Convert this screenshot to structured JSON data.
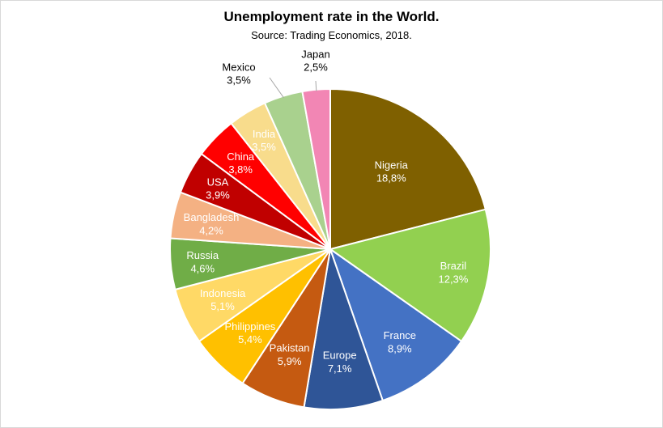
{
  "chart_data": {
    "type": "pie",
    "title": "Unemployment rate in the World.",
    "subtitle": "Source: Trading Economics, 2018.",
    "unit": "%",
    "slices": [
      {
        "label": "Nigeria",
        "value": 18.8,
        "value_text": "18,8%",
        "color": "#7f6000",
        "text_color": "#ffffff"
      },
      {
        "label": "Brazil",
        "value": 12.3,
        "value_text": "12,3%",
        "color": "#92d050",
        "text_color": "#ffffff"
      },
      {
        "label": "France",
        "value": 8.9,
        "value_text": "8,9%",
        "color": "#4472c4",
        "text_color": "#ffffff"
      },
      {
        "label": "Europe",
        "value": 7.1,
        "value_text": "7,1%",
        "color": "#2f5597",
        "text_color": "#ffffff"
      },
      {
        "label": "Pakistan",
        "value": 5.9,
        "value_text": "5,9%",
        "color": "#c55a11",
        "text_color": "#ffffff"
      },
      {
        "label": "Philippines",
        "value": 5.4,
        "value_text": "5,4%",
        "color": "#ffc000",
        "text_color": "#ffffff"
      },
      {
        "label": "Indonesia",
        "value": 5.1,
        "value_text": "5,1%",
        "color": "#ffd966",
        "text_color": "#ffffff"
      },
      {
        "label": "Russia",
        "value": 4.6,
        "value_text": "4,6%",
        "color": "#70ad47",
        "text_color": "#ffffff"
      },
      {
        "label": "Bangladesh",
        "value": 4.2,
        "value_text": "4,2%",
        "color": "#f4b183",
        "text_color": "#ffffff"
      },
      {
        "label": "USA",
        "value": 3.9,
        "value_text": "3,9%",
        "color": "#c00000",
        "text_color": "#ffffff"
      },
      {
        "label": "China",
        "value": 3.8,
        "value_text": "3,8%",
        "color": "#ff0000",
        "text_color": "#ffffff"
      },
      {
        "label": "India",
        "value": 3.5,
        "value_text": "3,5%",
        "color": "#f8dc8c",
        "text_color": "#ffffff"
      },
      {
        "label": "Mexico",
        "value": 3.5,
        "value_text": "3,5%",
        "color": "#a9d18e",
        "text_color": "#000000",
        "outside": true
      },
      {
        "label": "Japan",
        "value": 2.5,
        "value_text": "2,5%",
        "color": "#f286b4",
        "text_color": "#000000",
        "outside": true
      }
    ],
    "legend": "none"
  }
}
